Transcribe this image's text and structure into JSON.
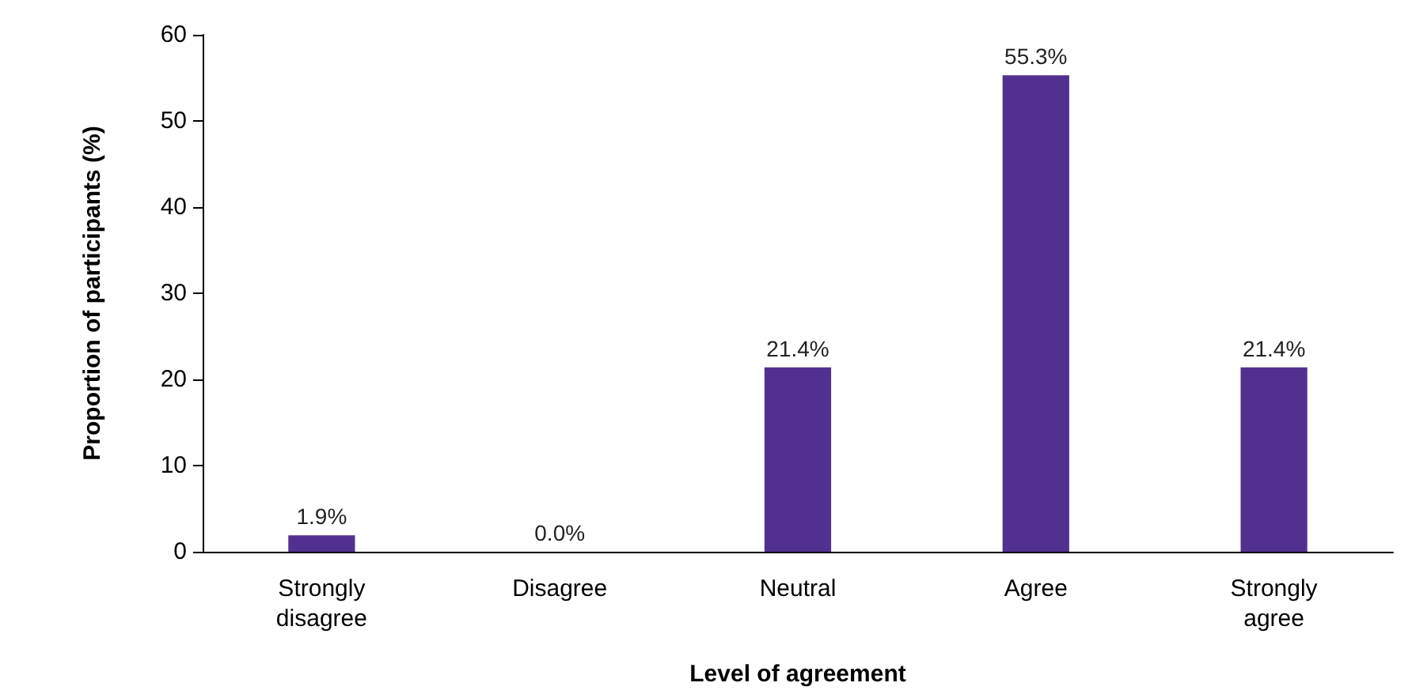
{
  "chart_data": {
    "type": "bar",
    "xlabel": "Level of agreement",
    "ylabel": "Proportion of participants (%)",
    "categories": [
      "Strongly\ndisagree",
      "Disagree",
      "Neutral",
      "Agree",
      "Strongly\nagree"
    ],
    "values": [
      1.9,
      0.0,
      21.4,
      55.3,
      21.4
    ],
    "value_labels": [
      "1.9%",
      "0.0%",
      "21.4%",
      "55.3%",
      "21.4%"
    ],
    "color": "#523090",
    "ylim": [
      0,
      60
    ],
    "yticks": [
      0,
      10,
      20,
      30,
      40,
      50,
      60
    ],
    "grid": false
  }
}
